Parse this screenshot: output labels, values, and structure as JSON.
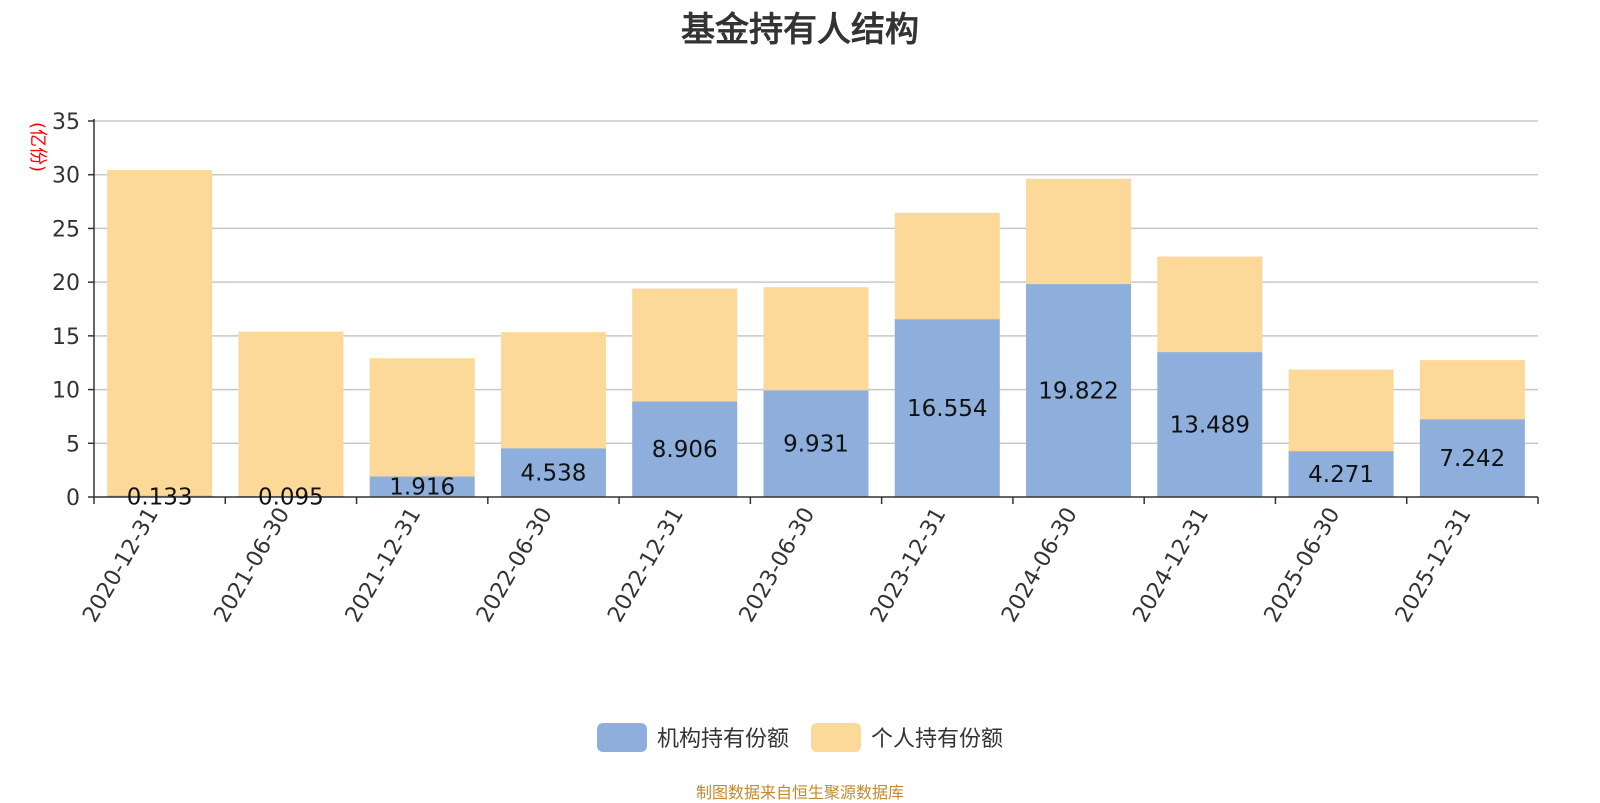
{
  "chart_data": {
    "type": "bar",
    "stacked": true,
    "title": "基金持有人结构",
    "ylabel": "(亿份)",
    "xlabel": "",
    "ylim": [
      0,
      35
    ],
    "yticks": [
      0,
      5,
      10,
      15,
      20,
      25,
      30,
      35
    ],
    "grid": true,
    "legend_position": "bottom",
    "categories": [
      "2020-12-31",
      "2021-06-30",
      "2021-12-31",
      "2022-06-30",
      "2022-12-31",
      "2023-06-30",
      "2023-12-31",
      "2024-06-30",
      "2024-12-31",
      "2025-06-30",
      "2025-12-31"
    ],
    "series": [
      {
        "name": "机构持有份额",
        "color": "#8eaedb",
        "values": [
          0.133,
          0.095,
          1.916,
          4.538,
          8.906,
          9.931,
          16.554,
          19.822,
          13.489,
          4.271,
          7.242
        ],
        "labels": [
          "0.133",
          "0.095",
          "1.916",
          "4.538",
          "8.906",
          "9.931",
          "16.554",
          "19.822",
          "13.489",
          "4.271",
          "7.242"
        ]
      },
      {
        "name": "个人持有份额",
        "color": "#fdd999",
        "values": [
          30.3,
          15.3,
          11.0,
          10.8,
          10.5,
          9.6,
          9.9,
          9.8,
          8.9,
          7.6,
          5.5
        ]
      }
    ],
    "source_note": "制图数据来自恒生聚源数据库"
  }
}
